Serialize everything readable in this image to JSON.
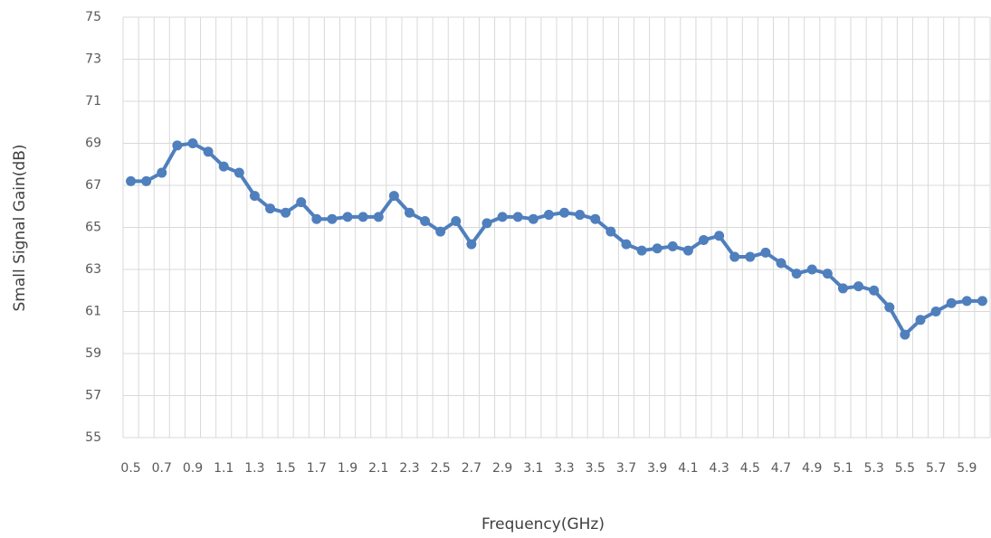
{
  "chart_data": {
    "type": "line",
    "x_label": "Frequency(GHz)",
    "y_label": "Small Signal Gain(dB)",
    "categories": [
      "0.5",
      null,
      "0.7",
      null,
      "0.9",
      null,
      "1.1",
      null,
      "1.3",
      null,
      "1.5",
      null,
      "1.7",
      null,
      "1.9",
      null,
      "2.1",
      null,
      "2.3",
      null,
      "2.5",
      null,
      "2.7",
      null,
      "2.9",
      null,
      "3.1",
      null,
      "3.3",
      null,
      "3.5",
      null,
      "3.7",
      null,
      "3.9",
      null,
      "4.1",
      null,
      "4.3",
      null,
      "4.5",
      null,
      "4.7",
      null,
      "4.9",
      null,
      "5.1",
      null,
      "5.3",
      null,
      "5.5",
      null,
      "5.7",
      null,
      "5.9",
      null
    ],
    "series": [
      {
        "color": "#4f7fbd",
        "values": [
          67.2,
          67.2,
          67.6,
          68.9,
          69.0,
          68.6,
          67.9,
          67.6,
          66.5,
          65.9,
          65.7,
          66.2,
          65.4,
          65.4,
          65.5,
          65.5,
          65.5,
          66.5,
          65.7,
          65.3,
          64.8,
          65.3,
          64.2,
          65.2,
          65.5,
          65.5,
          65.4,
          65.6,
          65.7,
          65.6,
          65.4,
          64.8,
          64.2,
          63.9,
          64.0,
          64.1,
          63.9,
          64.4,
          64.6,
          63.6,
          63.6,
          63.8,
          63.3,
          62.8,
          63.0,
          62.8,
          62.1,
          62.2,
          62.0,
          61.2,
          59.9,
          60.6,
          61.0,
          61.4,
          61.5,
          61.5
        ]
      }
    ],
    "ylim": [
      55,
      75
    ],
    "yticks": [
      55,
      57,
      59,
      61,
      63,
      65,
      67,
      69,
      71,
      73,
      75
    ],
    "grid": true
  }
}
